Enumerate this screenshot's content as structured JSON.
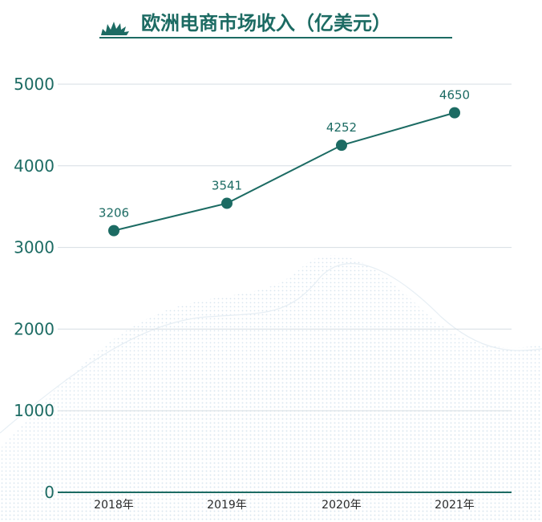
{
  "colors": {
    "accent": "#1c6b63",
    "grid": "#d6dde3",
    "baseline": "#1c6b63",
    "text": "#1c6b63",
    "tick_x": "#2a2a2a",
    "wave": "#c9dbe8"
  },
  "chart_data": {
    "type": "line",
    "title": "欧洲电商市场收入（亿美元）",
    "xlabel": "",
    "ylabel": "",
    "categories": [
      "2018年",
      "2019年",
      "2020年",
      "2021年"
    ],
    "values": [
      3206,
      3541,
      4252,
      4650
    ],
    "data_labels": [
      "3206",
      "3541",
      "4252",
      "4650"
    ],
    "y_ticks": [
      "0",
      "1000",
      "2000",
      "3000",
      "4000",
      "5000"
    ],
    "ylim": [
      0,
      5000
    ],
    "grid": true,
    "legend": "none"
  }
}
